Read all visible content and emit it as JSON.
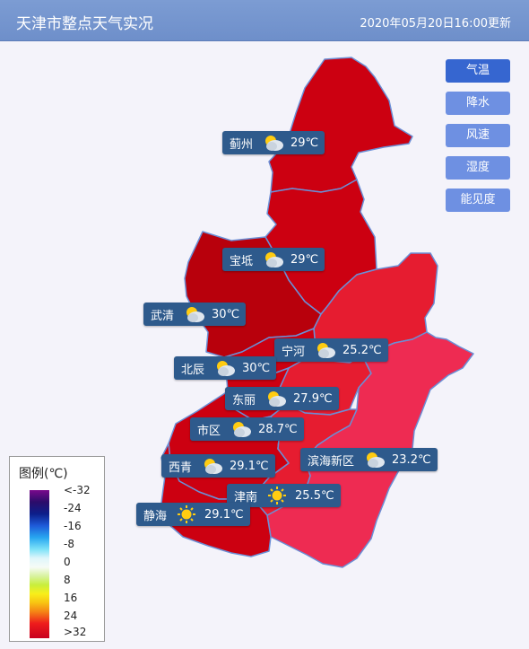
{
  "header": {
    "title": "天津市整点天气实况",
    "time": "2020年05月20日16:00更新"
  },
  "buttons": [
    {
      "label": "气温",
      "active": true
    },
    {
      "label": "降水",
      "active": false
    },
    {
      "label": "风速",
      "active": false
    },
    {
      "label": "湿度",
      "active": false
    },
    {
      "label": "能见度",
      "active": false
    }
  ],
  "stations": [
    {
      "name": "蓟州",
      "weather": "partly-cloudy-icon",
      "temp": "29℃"
    },
    {
      "name": "宝坻",
      "weather": "partly-cloudy-icon",
      "temp": "29℃"
    },
    {
      "name": "武清",
      "weather": "partly-cloudy-icon",
      "temp": "30℃"
    },
    {
      "name": "宁河",
      "weather": "partly-cloudy-icon",
      "temp": "25.2℃"
    },
    {
      "name": "北辰",
      "weather": "partly-cloudy-icon",
      "temp": "30℃"
    },
    {
      "name": "东丽",
      "weather": "partly-cloudy-icon",
      "temp": "27.9℃"
    },
    {
      "name": "市区",
      "weather": "partly-cloudy-icon",
      "temp": "28.7℃"
    },
    {
      "name": "滨海新区",
      "weather": "partly-cloudy-icon",
      "temp": "23.2℃"
    },
    {
      "name": "西青",
      "weather": "partly-cloudy-icon",
      "temp": "29.1℃"
    },
    {
      "name": "津南",
      "weather": "sunny-icon",
      "temp": "25.5℃"
    },
    {
      "name": "静海",
      "weather": "sunny-icon",
      "temp": "29.1℃"
    }
  ],
  "legend": {
    "title": "图例(℃)",
    "ticks": [
      "<-32",
      "-24",
      "-16",
      "-8",
      "0",
      "8",
      "16",
      "24",
      ">32"
    ]
  },
  "colors": {
    "header": "#7c9cd3",
    "region_hot": "#cc0011",
    "region_darkest": "#b8000c",
    "region_warm": "#e61c30",
    "region_mild": "#ee2b52",
    "border": "#6b8fd6",
    "label_bg": "#2e5a8c"
  }
}
